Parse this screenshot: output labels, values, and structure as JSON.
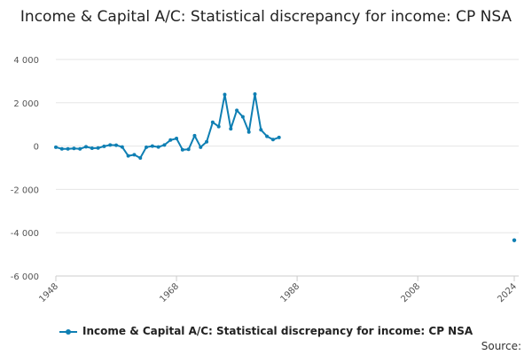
{
  "title": "Income & Capital A/C: Statistical discrepancy for income: CP NSA",
  "source_label": "Source:",
  "colors": {
    "series": "#0f7fb3",
    "grid": "#e6e6e6",
    "axis": "#cccccc",
    "text": "#555555"
  },
  "chart_data": {
    "type": "line",
    "title": "Income & Capital A/C: Statistical discrepancy for income: CP NSA",
    "xlabel": "",
    "ylabel": "",
    "xlim": [
      1948,
      2024
    ],
    "ylim": [
      -6000,
      4000
    ],
    "x_ticks": [
      1948,
      1968,
      1988,
      2008,
      2024
    ],
    "y_ticks": [
      4000,
      2000,
      0,
      -2000,
      -4000,
      -6000
    ],
    "y_tick_labels": [
      "4 000",
      "2 000",
      "0",
      "-2 000",
      "-4 000",
      "-6 000"
    ],
    "grid": "horizontal",
    "legend": "bottom",
    "series": [
      {
        "name": "Income & Capital A/C: Statistical discrepancy for income: CP NSA",
        "color": "#0f7fb3",
        "x": [
          1948,
          1949,
          1950,
          1951,
          1952,
          1953,
          1954,
          1955,
          1956,
          1957,
          1958,
          1959,
          1960,
          1961,
          1962,
          1963,
          1964,
          1965,
          1966,
          1967,
          1968,
          1969,
          1970,
          1971,
          1972,
          1973,
          1974,
          1975,
          1976,
          1977,
          1978,
          1979,
          1980,
          1981,
          1982,
          1983,
          1984,
          1985,
          1986
        ],
        "values": [
          -50,
          -130,
          -130,
          -110,
          -130,
          -30,
          -100,
          -90,
          -10,
          50,
          40,
          -40,
          -450,
          -400,
          -550,
          -50,
          0,
          -40,
          50,
          280,
          350,
          -170,
          -150,
          480,
          -50,
          200,
          1100,
          900,
          2380,
          800,
          1650,
          1350,
          650,
          2400,
          750,
          450,
          300,
          400,
          null
        ],
        "extra_points": [
          {
            "x": 2024,
            "y": -4350
          }
        ]
      }
    ]
  }
}
